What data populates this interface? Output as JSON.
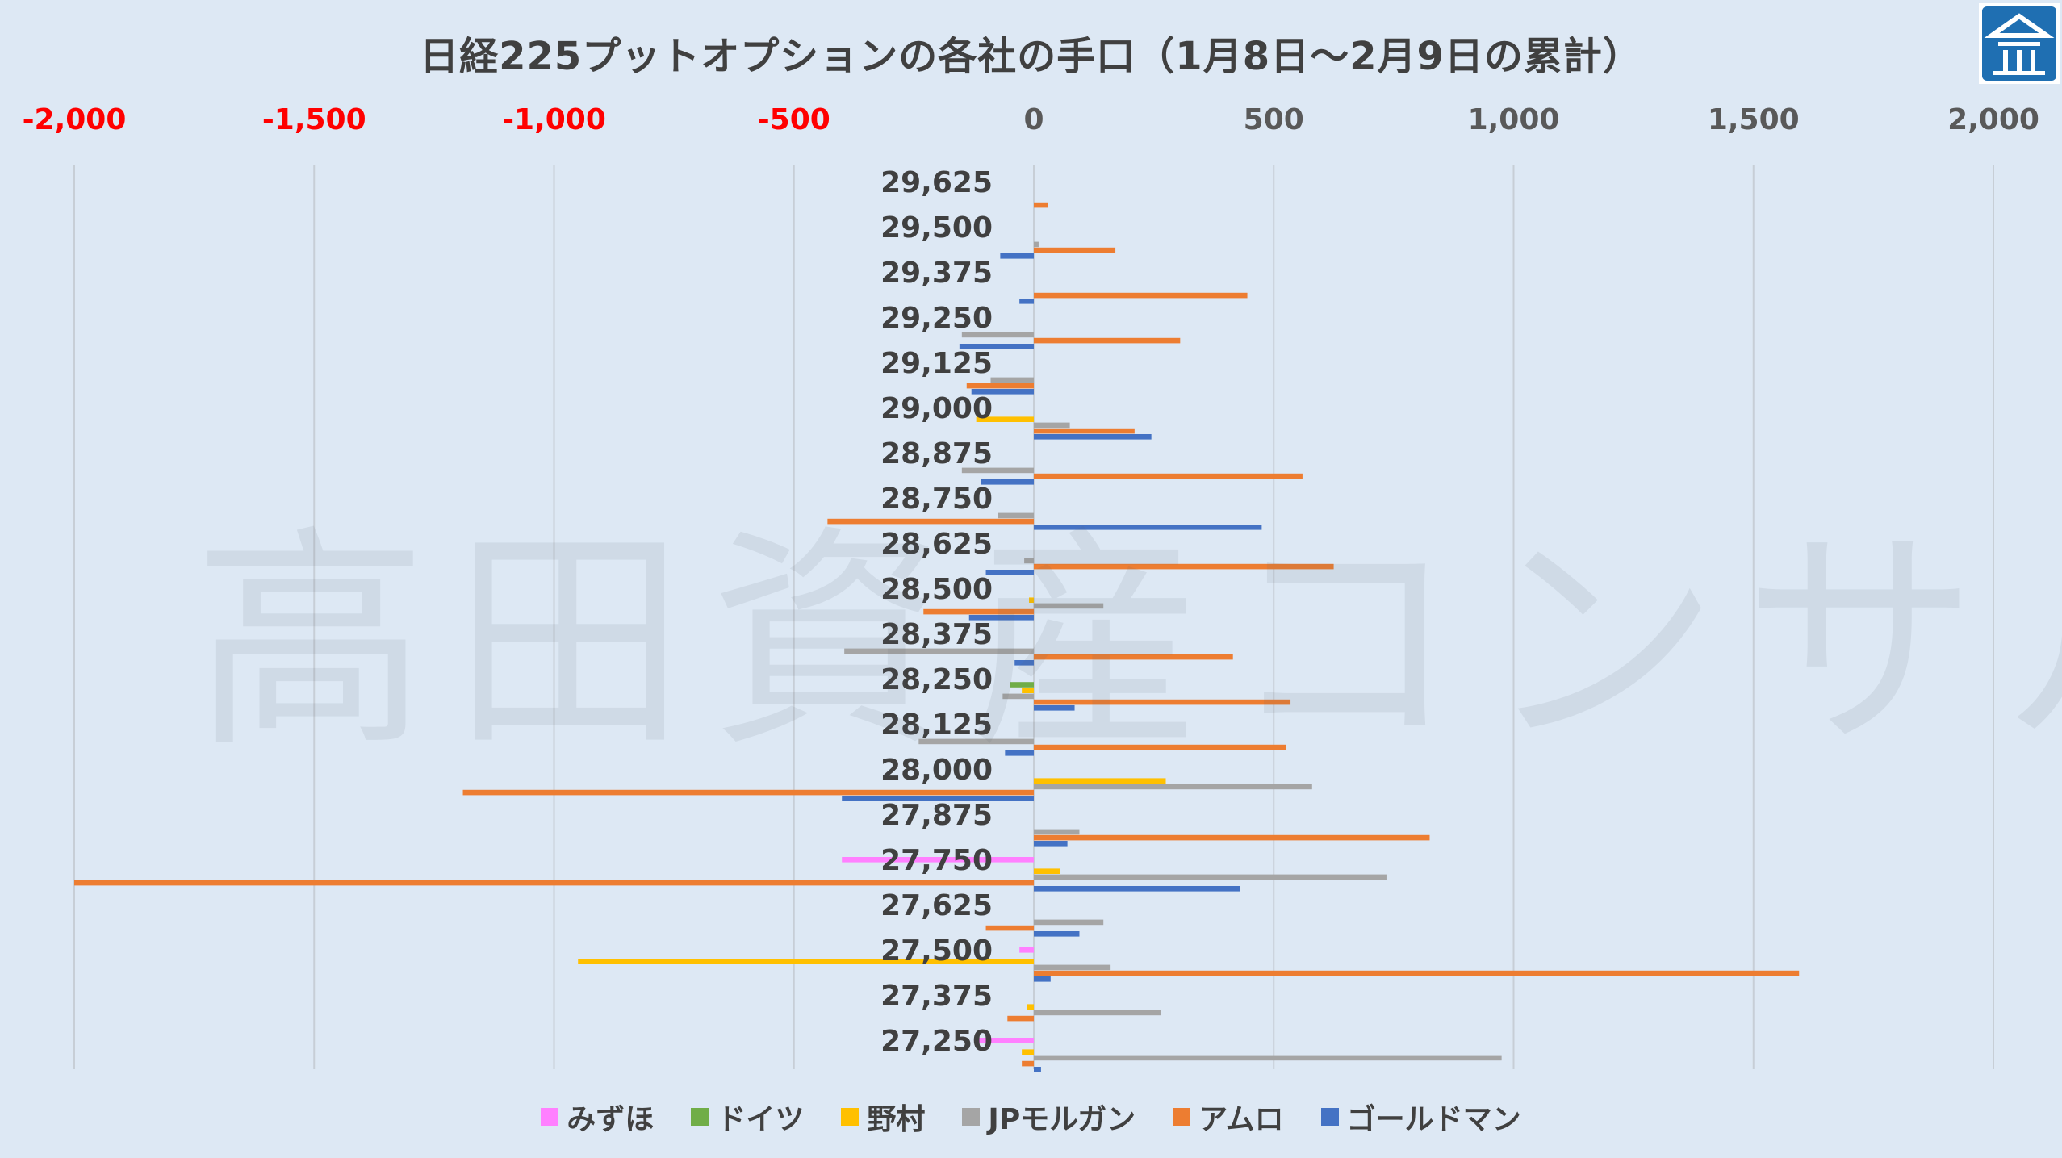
{
  "title": "日経225プットオプションの各社の手口（1月8日～2月9日の累計）",
  "watermark": "高田資産コンサル",
  "colors": {
    "background": "#dde8f4",
    "negative_tick": "#ff0000",
    "positive_tick": "#595959",
    "grid": "#c7ced6",
    "logo": "#1f6fb2"
  },
  "chart_data": {
    "type": "bar",
    "orientation": "horizontal",
    "xlim": [
      -2000,
      2000
    ],
    "xticks": [
      {
        "value": -2000,
        "label": "-2,000"
      },
      {
        "value": -1500,
        "label": "-1,500"
      },
      {
        "value": -1000,
        "label": "-1,000"
      },
      {
        "value": -500,
        "label": "-500"
      },
      {
        "value": 0,
        "label": "0"
      },
      {
        "value": 500,
        "label": "500"
      },
      {
        "value": 1000,
        "label": "1,000"
      },
      {
        "value": 1500,
        "label": "1,500"
      },
      {
        "value": 2000,
        "label": "2,000"
      }
    ],
    "categories": [
      "29,625",
      "29,500",
      "29,375",
      "29,250",
      "29,125",
      "29,000",
      "28,875",
      "28,750",
      "28,625",
      "28,500",
      "28,375",
      "28,250",
      "28,125",
      "28,000",
      "27,875",
      "27,750",
      "27,625",
      "27,500",
      "27,375",
      "27,250"
    ],
    "series": [
      {
        "name": "みずほ",
        "color": "#ff80ff",
        "values": [
          0,
          0,
          0,
          0,
          0,
          0,
          0,
          0,
          0,
          0,
          0,
          0,
          0,
          0,
          0,
          -400,
          0,
          -30,
          0,
          -120
        ]
      },
      {
        "name": "ドイツ",
        "color": "#70ad47",
        "values": [
          0,
          0,
          0,
          0,
          0,
          0,
          0,
          0,
          0,
          0,
          0,
          -50,
          0,
          0,
          0,
          0,
          0,
          0,
          0,
          0
        ]
      },
      {
        "name": "野村",
        "color": "#ffc000",
        "values": [
          0,
          0,
          0,
          0,
          0,
          -120,
          0,
          0,
          0,
          -10,
          0,
          -25,
          0,
          275,
          0,
          55,
          0,
          -950,
          -15,
          -25
        ]
      },
      {
        "name": "JPモルガン",
        "color": "#a5a5a5",
        "values": [
          0,
          10,
          0,
          -150,
          -90,
          75,
          -150,
          -75,
          -20,
          145,
          -395,
          -65,
          -240,
          580,
          95,
          735,
          145,
          160,
          265,
          975
        ]
      },
      {
        "name": "アムロ",
        "color": "#ed7d31",
        "values": [
          30,
          170,
          445,
          305,
          -140,
          210,
          560,
          -430,
          625,
          -230,
          415,
          535,
          525,
          -1190,
          825,
          -2000,
          -100,
          1595,
          -55,
          -25
        ]
      },
      {
        "name": "ゴールドマン",
        "color": "#4472c4",
        "values": [
          0,
          -70,
          -30,
          -155,
          -130,
          245,
          -110,
          475,
          -100,
          -135,
          -40,
          85,
          -60,
          -400,
          70,
          430,
          95,
          35,
          0,
          15
        ]
      }
    ]
  }
}
